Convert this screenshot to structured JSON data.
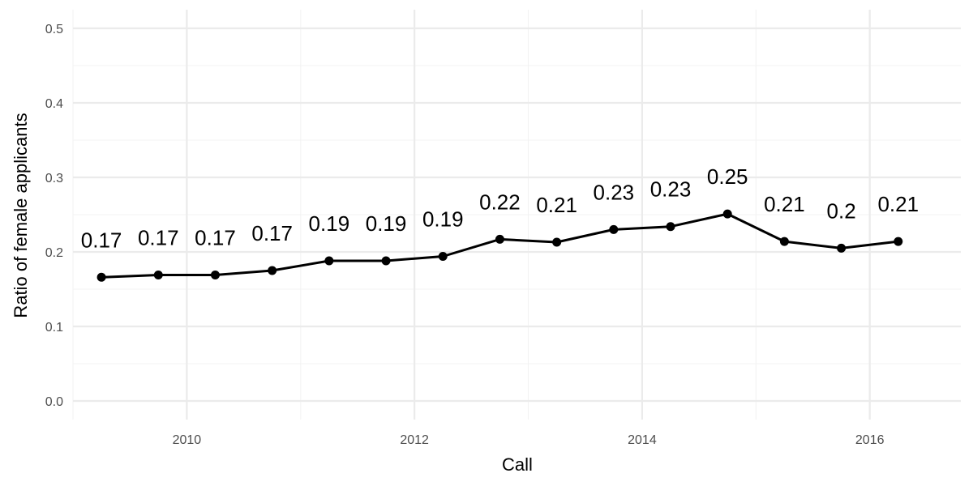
{
  "chart_data": {
    "type": "line",
    "xlabel": "Call",
    "ylabel": "Ratio of female applicants",
    "xlim": [
      2009.0,
      2016.8
    ],
    "ylim": [
      -0.025,
      0.525
    ],
    "x_ticks": [
      2010,
      2012,
      2014,
      2016
    ],
    "y_ticks": [
      0.0,
      0.1,
      0.2,
      0.3,
      0.4,
      0.5
    ],
    "y_tick_labels": [
      "0.0",
      "0.1",
      "0.2",
      "0.3",
      "0.4",
      "0.5"
    ],
    "grid": true,
    "legend": "none",
    "series": [
      {
        "color": "#000000",
        "x": [
          2009.25,
          2009.75,
          2010.25,
          2010.75,
          2011.25,
          2011.75,
          2012.25,
          2012.75,
          2013.25,
          2013.75,
          2014.25,
          2014.75,
          2015.25,
          2015.75,
          2016.25
        ],
        "values": [
          0.166,
          0.169,
          0.169,
          0.175,
          0.188,
          0.188,
          0.194,
          0.217,
          0.213,
          0.23,
          0.234,
          0.251,
          0.214,
          0.205,
          0.214
        ],
        "labels": [
          "0.17",
          "0.17",
          "0.17",
          "0.17",
          "0.19",
          "0.19",
          "0.19",
          "0.22",
          "0.21",
          "0.23",
          "0.23",
          "0.25",
          "0.21",
          "0.2",
          "0.21"
        ]
      }
    ]
  }
}
